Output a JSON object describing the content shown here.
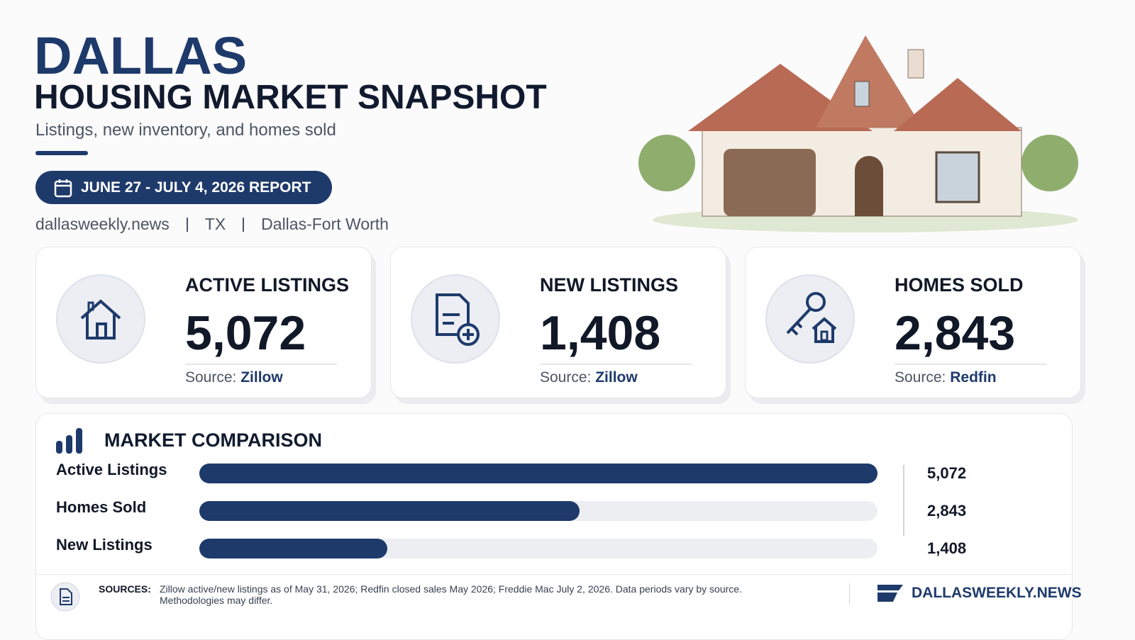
{
  "header": {
    "title": "DALLAS",
    "subtitle": "HOUSING MARKET SNAPSHOT",
    "tagline": "Listings, new inventory, and homes sold",
    "report_badge": "JUNE 27 - JULY 4, 2026 REPORT",
    "meta": [
      "dallasweekly.news",
      "TX",
      "Dallas-Fort Worth"
    ]
  },
  "cards": [
    {
      "label": "ACTIVE LISTINGS",
      "value": "5,072",
      "source_prefix": "Source:",
      "source": "Zillow"
    },
    {
      "label": "NEW LISTINGS",
      "value": "1,408",
      "source_prefix": "Source:",
      "source": "Zillow"
    },
    {
      "label": "HOMES SOLD",
      "value": "2,843",
      "source_prefix": "Source:",
      "source": "Redfin"
    }
  ],
  "comparison": {
    "title": "MARKET COMPARISON",
    "categories": [
      "Active Listings",
      "Homes Sold",
      "New Listings"
    ],
    "values": [
      5072,
      2843,
      1408
    ],
    "value_labels": [
      "5,072",
      "2,843",
      "1,408"
    ],
    "color": "#1e3a6b"
  },
  "footer": {
    "sources_label": "SOURCES:",
    "sources_text": "Zillow active/new listings as of May 31, 2026; Redfin closed sales May 2026; Freddie Mac July 2, 2026. Data periods vary by source. Methodologies may differ.",
    "brand": "DALLASWEEKLY.NEWS"
  }
}
